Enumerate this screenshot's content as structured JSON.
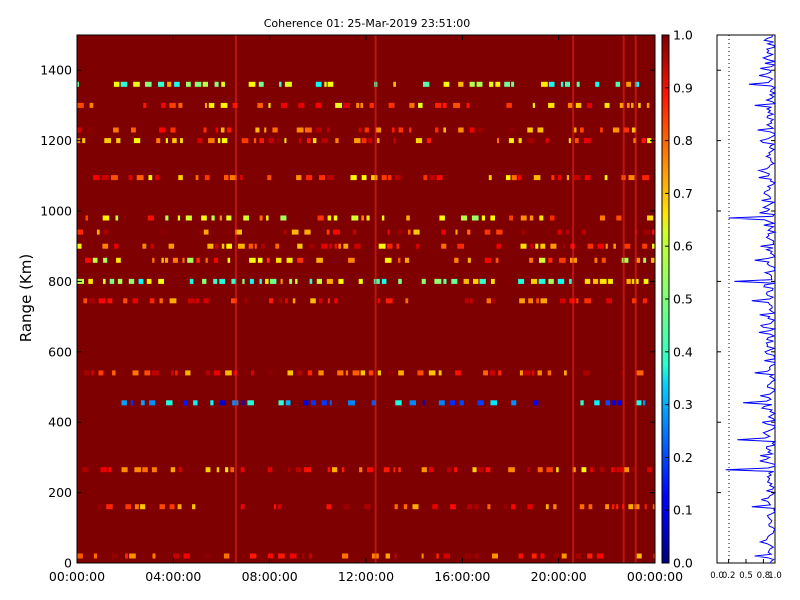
{
  "chart_data": [
    {
      "type": "heatmap",
      "title": "Coherence 01: 25-Mar-2019 23:51:00",
      "xlabel": "",
      "ylabel": "Range (Km)",
      "xlim_hours": [
        0,
        24
      ],
      "ylim": [
        0,
        1500
      ],
      "x_ticks": [
        "00:00:00",
        "04:00:00",
        "08:00:00",
        "12:00:00",
        "16:00:00",
        "20:00:00",
        "00:00:00"
      ],
      "y_ticks": [
        "0",
        "200",
        "400",
        "600",
        "800",
        "1000",
        "1200",
        "1400"
      ],
      "background_value": 1.0,
      "colorscale": "jet",
      "low_coherence_bands": [
        {
          "range_km": 1360,
          "value": 0.55
        },
        {
          "range_km": 1300,
          "value": 0.75
        },
        {
          "range_km": 1230,
          "value": 0.85
        },
        {
          "range_km": 1200,
          "value": 0.8
        },
        {
          "range_km": 1095,
          "value": 0.8
        },
        {
          "range_km": 980,
          "value": 0.7
        },
        {
          "range_km": 940,
          "value": 0.85
        },
        {
          "range_km": 900,
          "value": 0.8
        },
        {
          "range_km": 860,
          "value": 0.7
        },
        {
          "range_km": 800,
          "value": 0.55
        },
        {
          "range_km": 745,
          "value": 0.85
        },
        {
          "range_km": 540,
          "value": 0.85
        },
        {
          "range_km": 455,
          "value": 0.25
        },
        {
          "range_km": 265,
          "value": 0.8
        },
        {
          "range_km": 160,
          "value": 0.85
        },
        {
          "range_km": 20,
          "value": 0.85
        }
      ],
      "vertical_streaks_hours": [
        6.6,
        12.4,
        20.6,
        22.7,
        23.2
      ]
    },
    {
      "type": "colorbar",
      "ticks": [
        "0.0",
        "0.1",
        "0.2",
        "0.3",
        "0.4",
        "0.5",
        "0.6",
        "0.7",
        "0.8",
        "0.9",
        "1.0"
      ],
      "range": [
        0,
        1
      ]
    },
    {
      "type": "line",
      "xlabel": "",
      "ylabel": "",
      "xlim": [
        0,
        1
      ],
      "x_ticks": [
        "0.0",
        "0.2",
        "0.5",
        "0.8",
        "1.0"
      ],
      "ylim": [
        0,
        1500
      ],
      "series_color": "#0000ff",
      "dips": [
        {
          "range_km": 1360,
          "value": 0.55
        },
        {
          "range_km": 1300,
          "value": 0.65
        },
        {
          "range_km": 1230,
          "value": 0.7
        },
        {
          "range_km": 1200,
          "value": 0.75
        },
        {
          "range_km": 1095,
          "value": 0.72
        },
        {
          "range_km": 980,
          "value": 0.2
        },
        {
          "range_km": 900,
          "value": 0.75
        },
        {
          "range_km": 860,
          "value": 0.65
        },
        {
          "range_km": 800,
          "value": 0.3
        },
        {
          "range_km": 745,
          "value": 0.6
        },
        {
          "range_km": 540,
          "value": 0.65
        },
        {
          "range_km": 455,
          "value": 0.45
        },
        {
          "range_km": 350,
          "value": 0.35
        },
        {
          "range_km": 265,
          "value": 0.15
        },
        {
          "range_km": 160,
          "value": 0.6
        },
        {
          "range_km": 20,
          "value": 0.65
        }
      ]
    }
  ]
}
